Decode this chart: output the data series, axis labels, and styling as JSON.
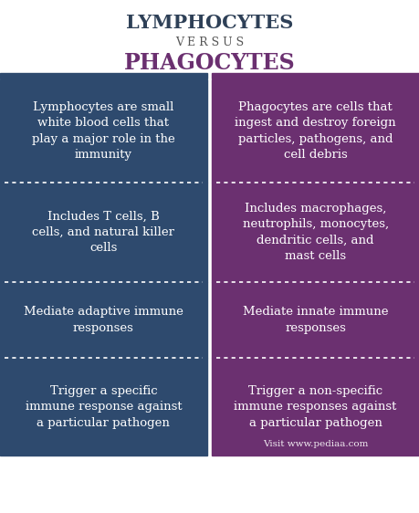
{
  "title_left": "LYMPHOCYTES",
  "title_versus": "V E R S U S",
  "title_right": "PHAGOCYTES",
  "title_left_color": "#2e4057",
  "title_versus_color": "#555555",
  "title_right_color": "#6b3070",
  "left_color": "#2e4a6e",
  "right_color": "#6b3070",
  "text_color": "#ffffff",
  "background_color": "#ffffff",
  "divider_color": "#ffffff",
  "left_cells": [
    "Lymphocytes are small\nwhite blood cells that\nplay a major role in the\nimmunity",
    "Includes T cells, B\ncells, and natural killer\ncells",
    "Mediate adaptive immune\nresponses",
    "Trigger a specific\nimmune response against\na particular pathogen"
  ],
  "right_cells": [
    "Phagocytes are cells that\ningest and destroy foreign\nparticles, pathogens, and\ncell debris",
    "Includes macrophages,\nneutrophils, monocytes,\ndendritic cells, and\nmast cells",
    "Mediate innate immune\nresponses",
    "Trigger a non-specific\nimmune responses against\na particular pathogen"
  ],
  "watermark": "Visit www.pediaa.com",
  "header_bar_left_color": "#2e4a6e",
  "header_bar_right_color": "#6b3070",
  "font_size_title": 15,
  "font_size_versus": 9,
  "font_size_cell": 9.5,
  "font_size_watermark": 7.5
}
